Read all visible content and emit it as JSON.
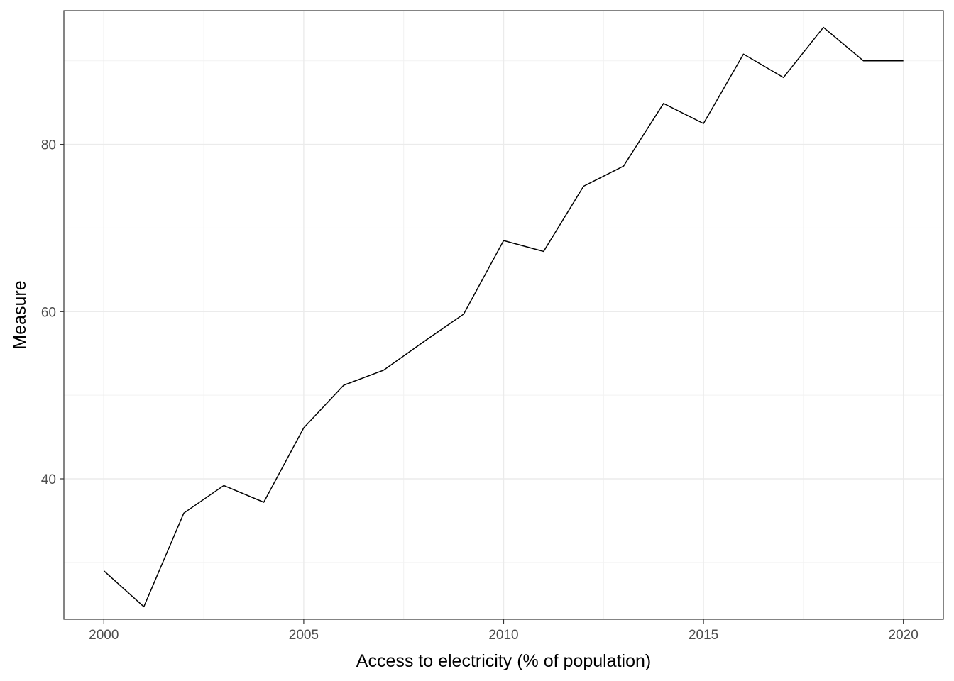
{
  "chart_data": {
    "type": "line",
    "title": "",
    "xlabel": "Access to electricity (% of population)",
    "ylabel": "Measure",
    "x": [
      2000,
      2001,
      2002,
      2003,
      2004,
      2005,
      2006,
      2007,
      2008,
      2009,
      2010,
      2011,
      2012,
      2013,
      2014,
      2015,
      2016,
      2017,
      2018,
      2019,
      2020
    ],
    "series": [
      {
        "values": [
          29.0,
          24.7,
          35.9,
          39.2,
          37.2,
          46.1,
          51.2,
          53.0,
          56.4,
          59.7,
          68.5,
          67.2,
          75.0,
          77.4,
          84.9,
          82.5,
          90.8,
          88.0,
          94.0,
          90.0,
          90.0
        ]
      }
    ],
    "xticks": [
      2000,
      2005,
      2010,
      2015,
      2020
    ],
    "yticks": [
      40,
      60,
      80
    ],
    "xlim": [
      1999.0,
      2021.0
    ],
    "ylim": [
      23.2,
      96.0
    ],
    "grid": true,
    "legend": "none",
    "colors": {
      "line": "#000000",
      "grid_major": "#ebebeb",
      "grid_minor": "#f2f2f2",
      "border": "#333333",
      "tick_label": "#4d4d4d"
    }
  }
}
